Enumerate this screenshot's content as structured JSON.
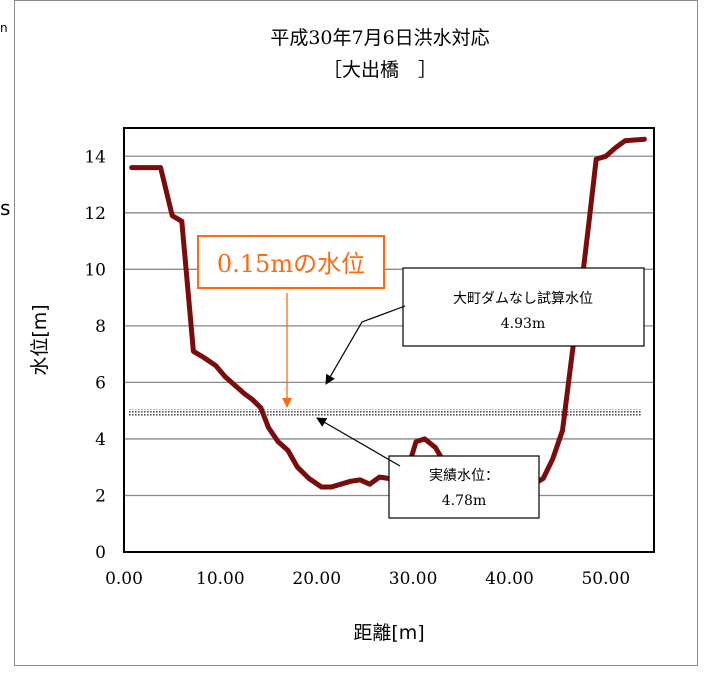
{
  "chart_data": {
    "type": "line",
    "title": "平成30年7月6日洪水対応",
    "subtitle": "［大出橋　］",
    "xlabel": "距離[m]",
    "ylabel": "水位[m]",
    "xlim": [
      0,
      55
    ],
    "ylim": [
      0,
      15
    ],
    "xticks": [
      "0.00",
      "10.00",
      "20.00",
      "30.00",
      "40.00",
      "50.00"
    ],
    "yticks": [
      "0",
      "2",
      "4",
      "6",
      "8",
      "10",
      "12",
      "14"
    ],
    "grid": "horizontal",
    "series": [
      {
        "values": [
          [
            0.8,
            13.6
          ],
          [
            3.8,
            13.6
          ],
          [
            5.0,
            11.9
          ],
          [
            6.0,
            11.7
          ],
          [
            7.2,
            7.1
          ],
          [
            8.2,
            6.9
          ],
          [
            9.5,
            6.6
          ],
          [
            10.5,
            6.2
          ],
          [
            11.5,
            5.9
          ],
          [
            12.5,
            5.6
          ],
          [
            13.3,
            5.4
          ],
          [
            14.2,
            5.1
          ],
          [
            15.0,
            4.4
          ],
          [
            16.0,
            3.9
          ],
          [
            17.0,
            3.6
          ],
          [
            18.0,
            3.0
          ],
          [
            19.2,
            2.6
          ],
          [
            20.5,
            2.3
          ],
          [
            21.5,
            2.3
          ],
          [
            22.5,
            2.4
          ],
          [
            23.5,
            2.5
          ],
          [
            24.5,
            2.55
          ],
          [
            25.5,
            2.4
          ],
          [
            26.5,
            2.65
          ],
          [
            27.5,
            2.6
          ],
          [
            28.5,
            2.8
          ],
          [
            29.5,
            3.0
          ],
          [
            30.3,
            3.9
          ],
          [
            31.2,
            4.0
          ],
          [
            32.3,
            3.7
          ],
          [
            33.0,
            3.3
          ],
          [
            34.0,
            2.9
          ],
          [
            35.0,
            2.6
          ],
          [
            36.5,
            2.45
          ],
          [
            38.0,
            2.4
          ],
          [
            39.5,
            2.35
          ],
          [
            41.0,
            2.3
          ],
          [
            42.5,
            2.4
          ],
          [
            43.5,
            2.6
          ],
          [
            44.5,
            3.3
          ],
          [
            45.5,
            4.3
          ],
          [
            46.5,
            7.0
          ],
          [
            47.5,
            9.5
          ],
          [
            48.3,
            11.8
          ],
          [
            49.0,
            13.9
          ],
          [
            50.0,
            14.0
          ],
          [
            51.0,
            14.3
          ],
          [
            52.0,
            14.55
          ],
          [
            54.0,
            14.6
          ]
        ],
        "color": "#7b0c0c"
      },
      {
        "type": "hline",
        "y": 4.93,
        "xrange": [
          0.5,
          53.7
        ],
        "style": "dotted band"
      }
    ],
    "annotations": {
      "highlight": {
        "text": "0.15mの水位",
        "color": "#ff6a13"
      },
      "box1": {
        "line1": "大町ダムなし試算水位",
        "line2": "4.93m"
      },
      "box2": {
        "line1": "実績水位：",
        "line2": "4.78m"
      }
    }
  },
  "stray": {
    "left_char": "n",
    "left_char2": "s"
  }
}
